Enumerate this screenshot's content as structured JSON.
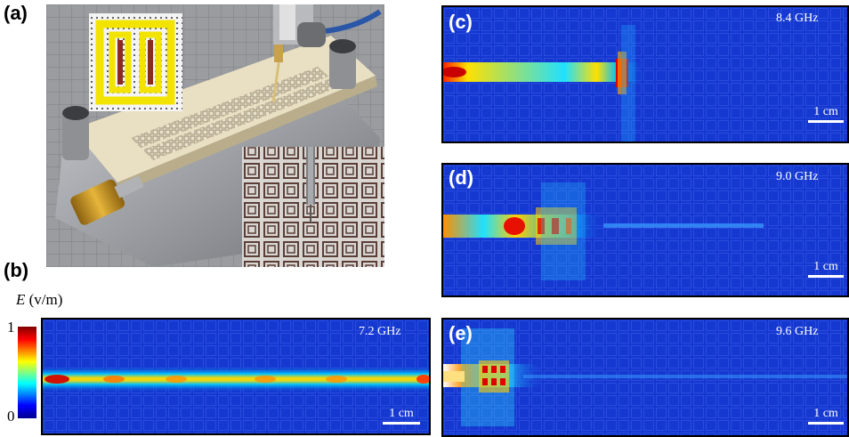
{
  "panels": {
    "a": {
      "label": "(a)"
    },
    "b": {
      "label": "(b)",
      "freq": "7.2 GHz",
      "scale": "1 cm"
    },
    "c": {
      "label": "(c)",
      "freq": "8.4 GHz",
      "scale": "1 cm"
    },
    "d": {
      "label": "(d)",
      "freq": "9.0 GHz",
      "scale": "1 cm"
    },
    "e": {
      "label": "(e)",
      "freq": "9.6 GHz",
      "scale": "1 cm"
    }
  },
  "colorbar": {
    "title_italic": "E",
    "title_unit": " (v/m)",
    "max_label": "1",
    "min_label": "0"
  },
  "colors": {
    "field_background": "#1030c8",
    "colormap": [
      "#00008f",
      "#0000ff",
      "#00ffff",
      "#ffff00",
      "#ff0000",
      "#800000"
    ]
  }
}
